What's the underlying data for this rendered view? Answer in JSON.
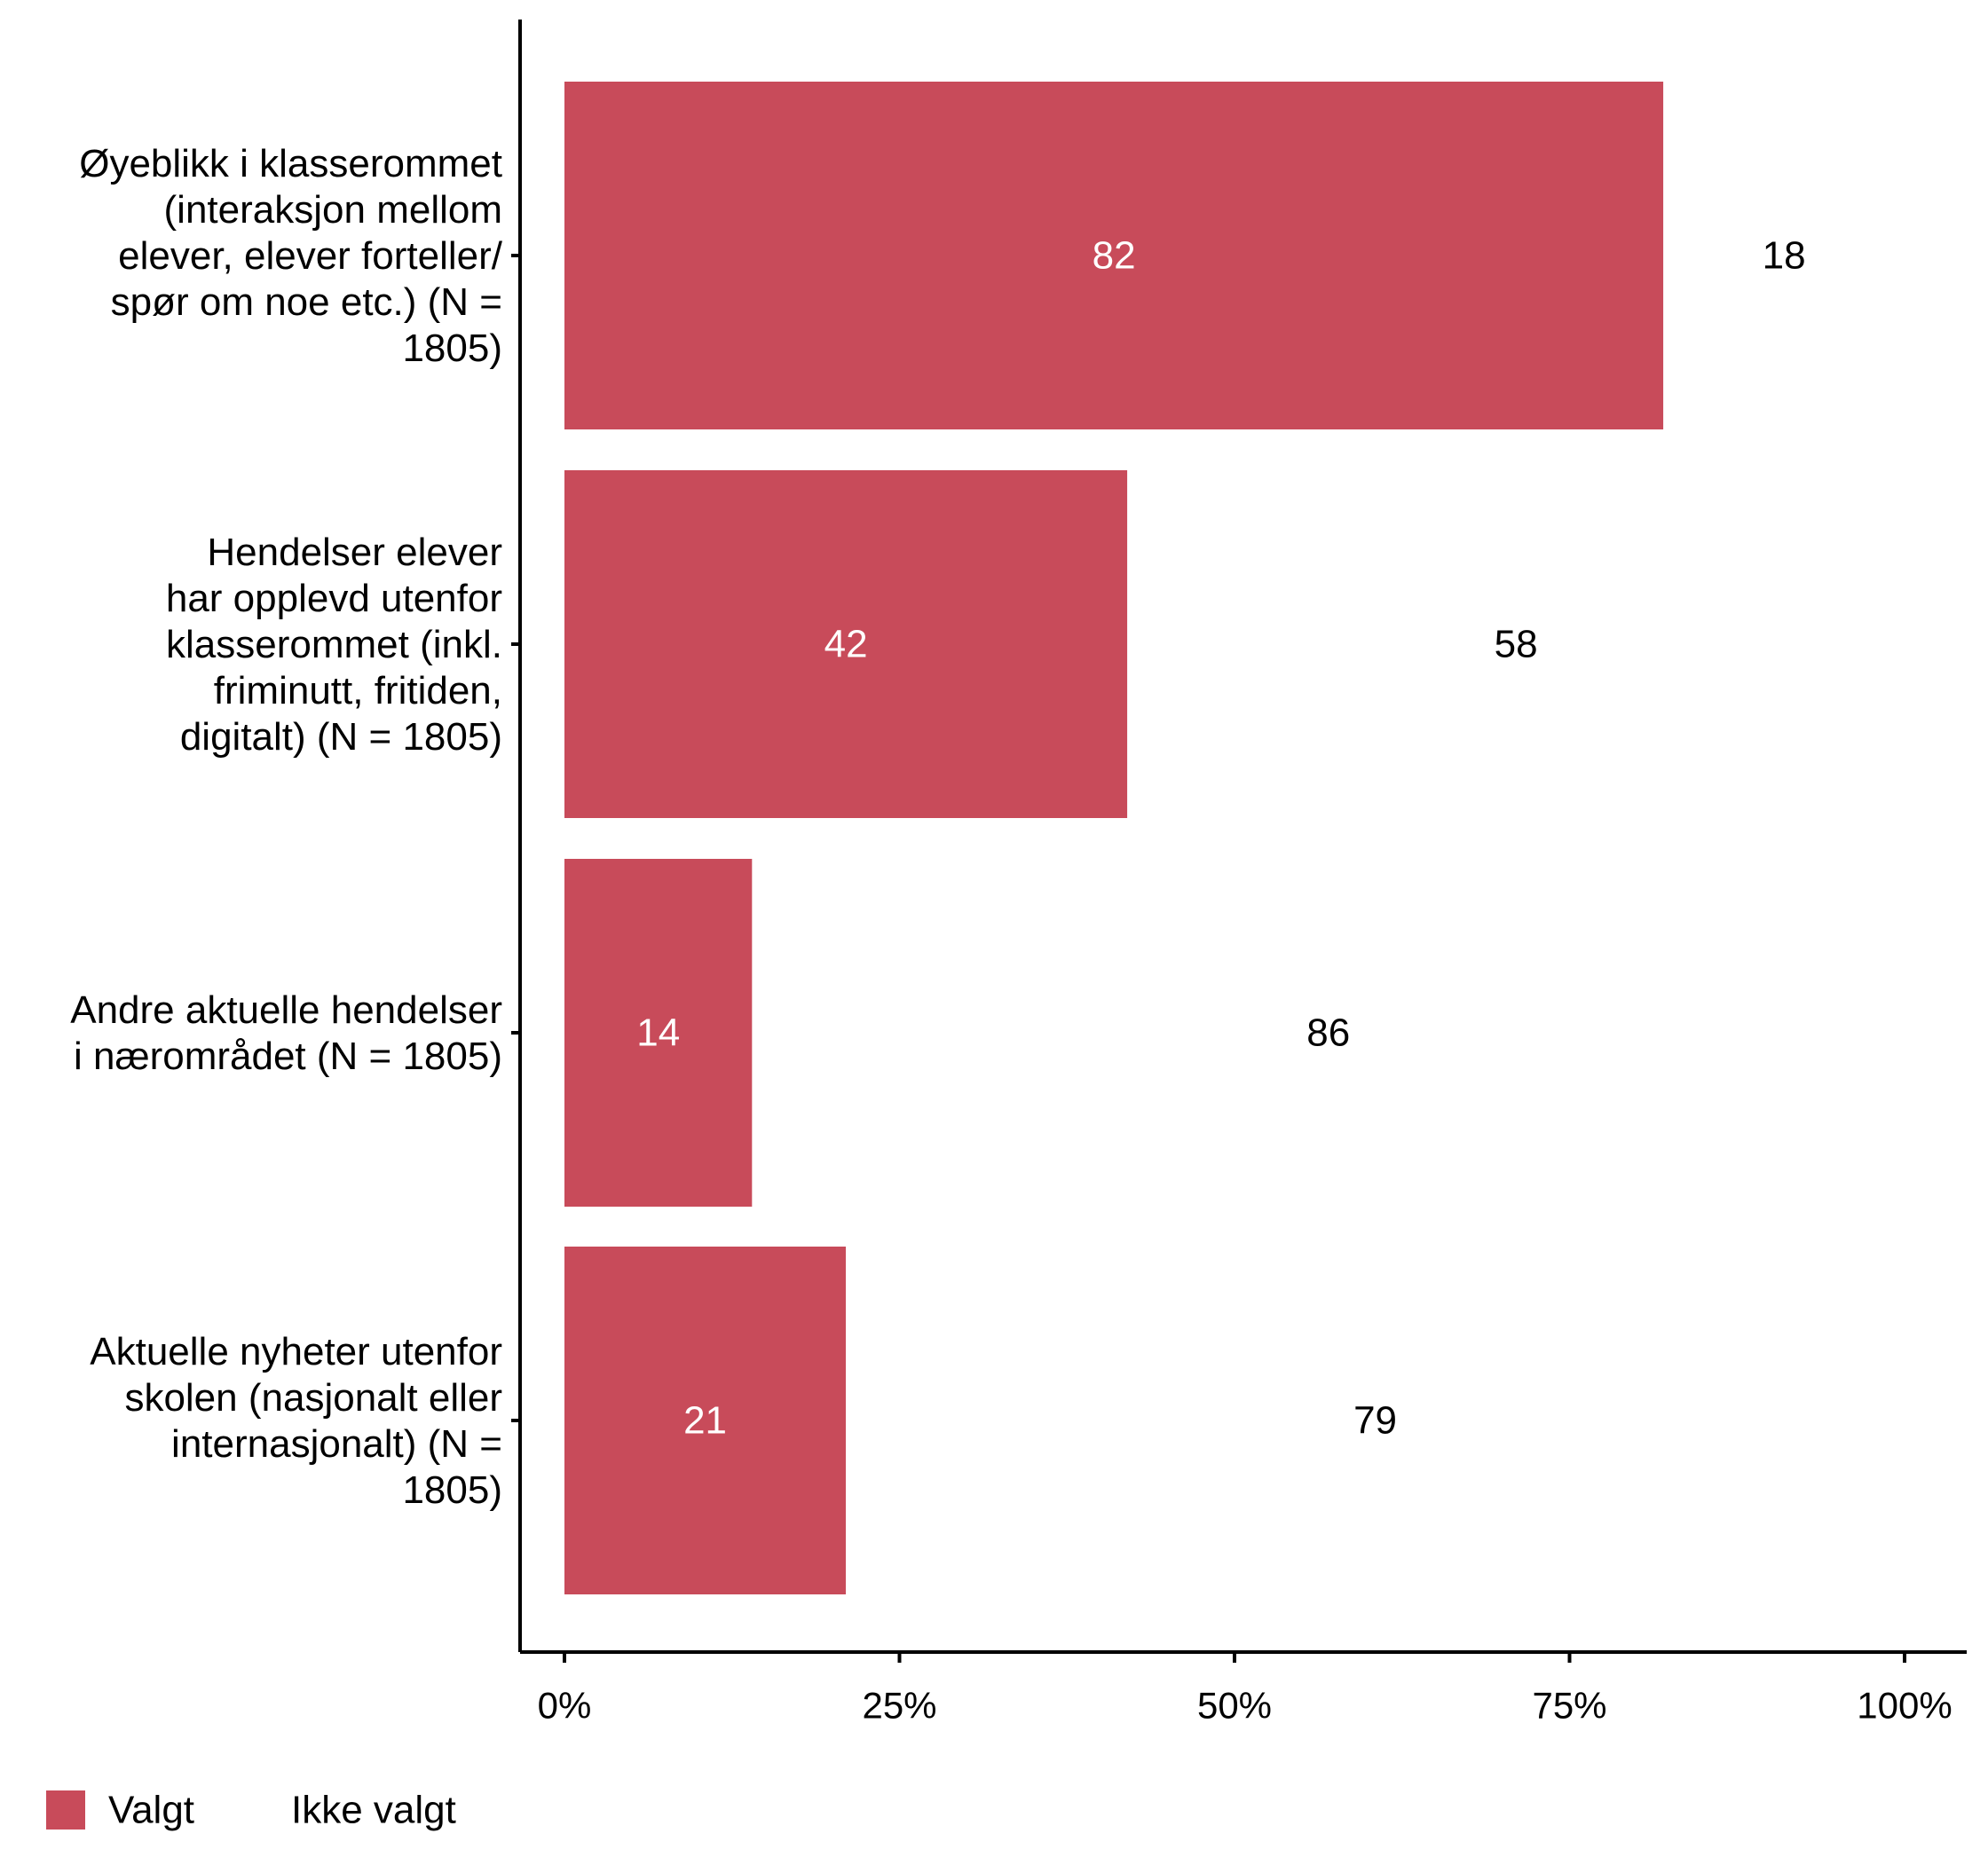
{
  "chart_data": {
    "type": "bar",
    "orientation": "horizontal",
    "stacked": true,
    "categories": [
      [
        "Øyeblikk i klasserommet",
        "(interaksjon mellom",
        "elever, elever forteller/",
        "spør om noe etc.) (N =",
        "1805)"
      ],
      [
        "Hendelser elever",
        "har opplevd utenfor",
        "klasserommet (inkl.",
        "friminutt, fritiden,",
        "digitalt) (N = 1805)"
      ],
      [
        "Andre aktuelle hendelser",
        "i nærområdet (N = 1805)"
      ],
      [
        "Aktuelle nyheter utenfor",
        "skolen (nasjonalt eller",
        "internasjonalt) (N =",
        "1805)"
      ]
    ],
    "series": [
      {
        "name": "Valgt",
        "color": "#c84b5a",
        "label_color": "#ffffff",
        "values": [
          82,
          42,
          14,
          21
        ]
      },
      {
        "name": "Ikke valgt",
        "color": "#ffffff",
        "label_color": "#000000",
        "values": [
          18,
          58,
          86,
          79
        ]
      }
    ],
    "xlim": [
      0,
      100
    ],
    "x_ticks": [
      0,
      25,
      50,
      75,
      100
    ],
    "x_tick_labels": [
      "0%",
      "25%",
      "50%",
      "75%",
      "100%"
    ],
    "legend_position": "bottom-left",
    "title": "",
    "xlabel": "",
    "ylabel": ""
  }
}
